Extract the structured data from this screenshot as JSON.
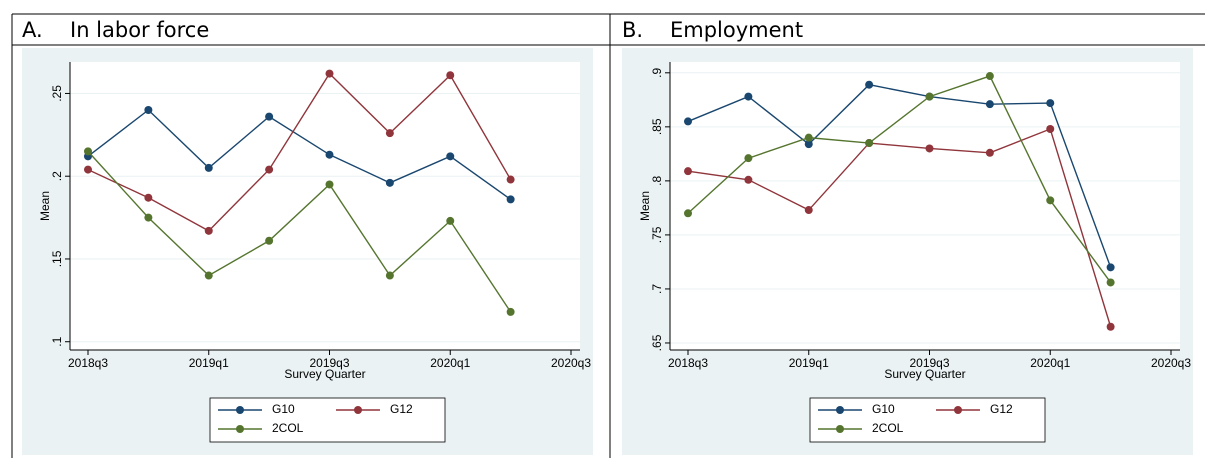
{
  "chart_data": [
    {
      "type": "line",
      "label": "A.",
      "title": "In labor force",
      "x_label": "Survey Quarter",
      "y_label": "Mean",
      "categories": [
        "2018q3",
        null,
        "2019q1",
        null,
        "2019q3",
        null,
        "2020q1",
        null,
        "2020q3"
      ],
      "ylim": [
        0.095,
        0.269
      ],
      "yticks": [
        {
          "value": 0.1,
          "label": ".1"
        },
        {
          "value": 0.15,
          "label": ".15"
        },
        {
          "value": 0.2,
          "label": ".2"
        },
        {
          "value": 0.25,
          "label": ".25"
        }
      ],
      "grid": true,
      "series": [
        {
          "name": "G10",
          "color": "#1a476f",
          "values": [
            0.212,
            0.24,
            0.205,
            0.236,
            0.213,
            0.196,
            0.212,
            0.186,
            null
          ]
        },
        {
          "name": "G12",
          "color": "#90353b",
          "values": [
            0.204,
            0.187,
            0.167,
            0.204,
            0.262,
            0.226,
            0.261,
            0.198,
            null
          ]
        },
        {
          "name": "2COL",
          "color": "#55752f",
          "values": [
            0.215,
            0.175,
            0.14,
            0.161,
            0.195,
            0.14,
            0.173,
            0.118,
            null
          ]
        }
      ]
    },
    {
      "type": "line",
      "label": "B.",
      "title": "Employment",
      "x_label": "Survey Quarter",
      "y_label": "Mean",
      "categories": [
        "2018q3",
        null,
        "2019q1",
        null,
        "2019q3",
        null,
        "2020q1",
        null,
        "2020q3"
      ],
      "ylim": [
        0.6435,
        0.91
      ],
      "yticks": [
        {
          "value": 0.65,
          "label": ".65"
        },
        {
          "value": 0.7,
          "label": ".7"
        },
        {
          "value": 0.75,
          "label": ".75"
        },
        {
          "value": 0.8,
          "label": ".8"
        },
        {
          "value": 0.85,
          "label": ".85"
        },
        {
          "value": 0.9,
          "label": ".9"
        }
      ],
      "grid": true,
      "series": [
        {
          "name": "G10",
          "color": "#1a476f",
          "values": [
            0.855,
            0.878,
            0.834,
            0.889,
            0.878,
            0.871,
            0.872,
            0.72,
            null
          ]
        },
        {
          "name": "G12",
          "color": "#90353b",
          "values": [
            0.809,
            0.801,
            0.773,
            0.835,
            0.83,
            0.826,
            0.848,
            0.665,
            null
          ]
        },
        {
          "name": "2COL",
          "color": "#55752f",
          "values": [
            0.77,
            0.821,
            0.84,
            0.835,
            0.878,
            0.897,
            0.782,
            0.706,
            null
          ]
        }
      ]
    }
  ]
}
